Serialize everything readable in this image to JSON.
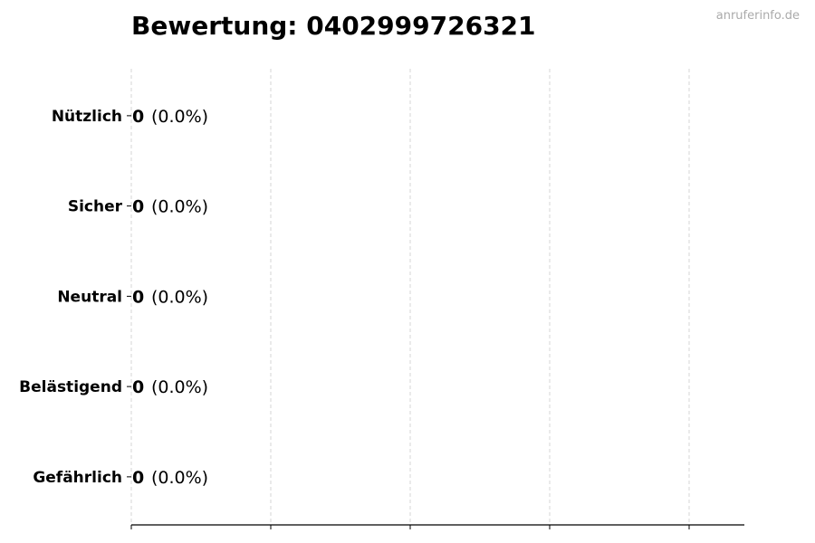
{
  "chart_data": {
    "type": "bar",
    "orientation": "horizontal",
    "title": "Bewertung: 0402999726321",
    "watermark": "anruferinfo.de",
    "categories": [
      "Nützlich",
      "Sicher",
      "Neutral",
      "Belästigend",
      "Gefährlich"
    ],
    "values": [
      0,
      0,
      0,
      0,
      0
    ],
    "value_labels": [
      "0",
      "0",
      "0",
      "0",
      "0"
    ],
    "percent_labels": [
      "(0.0%)",
      "(0.0%)",
      "(0.0%)",
      "(0.0%)",
      "(0.0%)"
    ],
    "xlabel": "",
    "ylabel": "",
    "x_tick_labels_shown": false,
    "grid": "vertical dashed",
    "colors": {
      "bar_edge": "#000000",
      "grid": "#cccccc",
      "text": "#000000",
      "watermark": "#aaaaaa"
    }
  }
}
